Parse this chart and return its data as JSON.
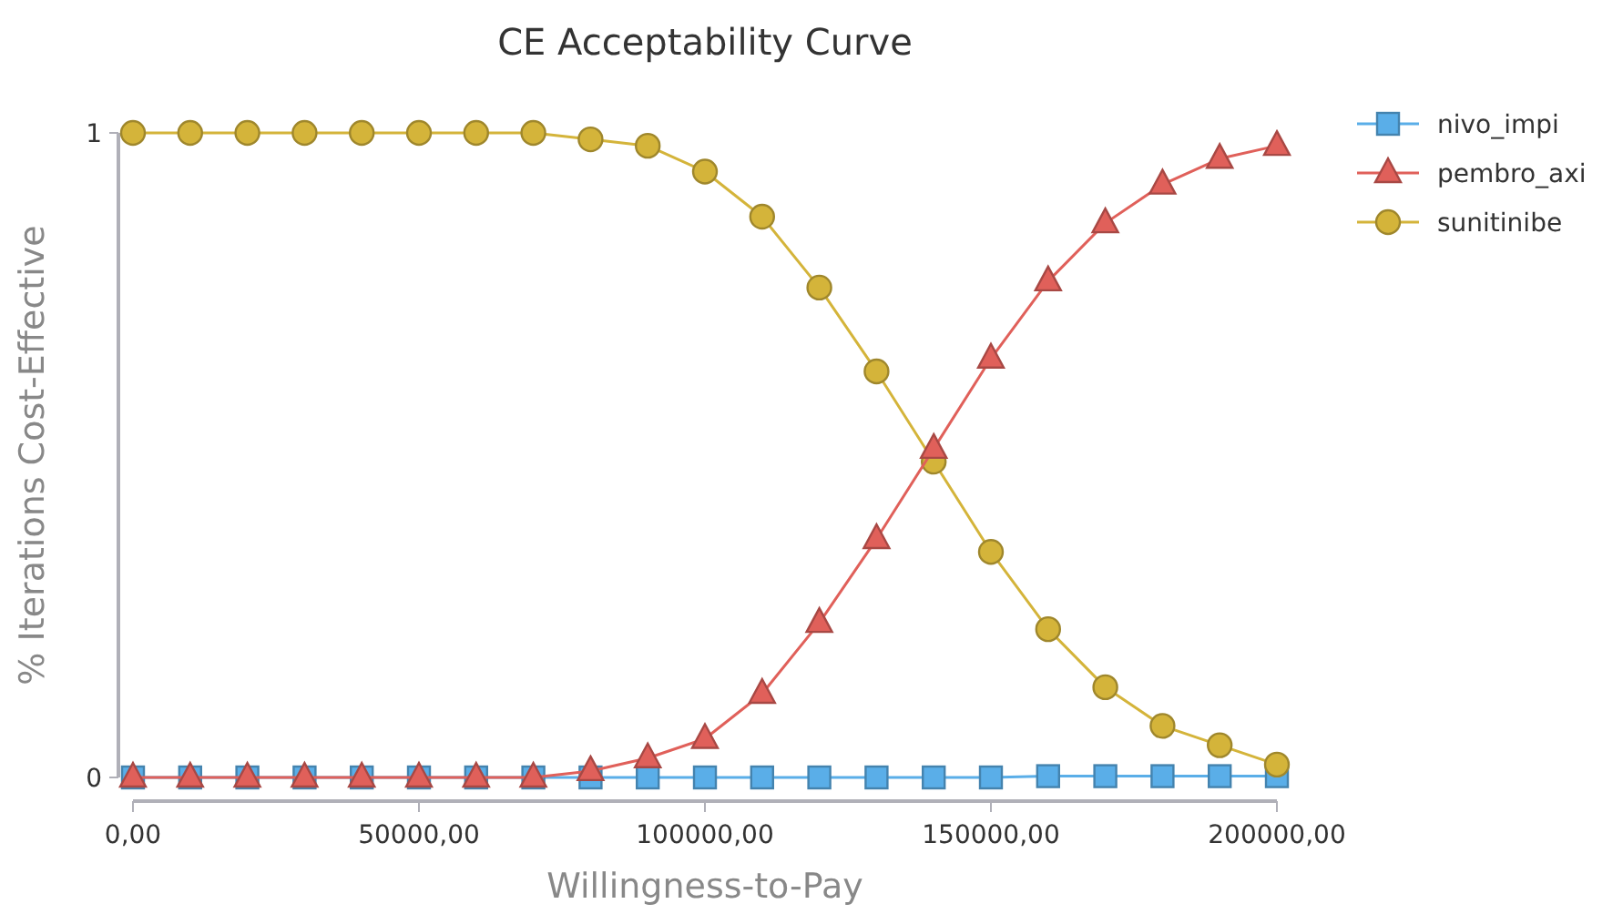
{
  "chart_data": {
    "type": "line",
    "title": "CE Acceptability Curve",
    "xlabel": "Willingness-to-Pay",
    "ylabel": "% Iterations Cost-Effective",
    "x": [
      0,
      10000,
      20000,
      30000,
      40000,
      50000,
      60000,
      70000,
      80000,
      90000,
      100000,
      110000,
      120000,
      130000,
      140000,
      150000,
      160000,
      170000,
      180000,
      190000,
      200000
    ],
    "series": [
      {
        "name": "nivo_impi",
        "color": "#5aaee8",
        "marker": "square",
        "values": [
          0,
          0,
          0,
          0,
          0,
          0,
          0,
          0,
          0,
          0,
          0,
          0,
          0,
          0,
          0,
          0,
          0.002,
          0.002,
          0.002,
          0.002,
          0.002
        ]
      },
      {
        "name": "pembro_axi",
        "color": "#e0605a",
        "marker": "triangle",
        "values": [
          0,
          0,
          0,
          0,
          0,
          0,
          0,
          0,
          0.01,
          0.03,
          0.06,
          0.13,
          0.24,
          0.37,
          0.51,
          0.65,
          0.77,
          0.86,
          0.92,
          0.96,
          0.98
        ]
      },
      {
        "name": "sunitinibe",
        "color": "#d4b43a",
        "marker": "circle",
        "values": [
          1,
          1,
          1,
          1,
          1,
          1,
          1,
          1,
          0.99,
          0.98,
          0.94,
          0.87,
          0.76,
          0.63,
          0.49,
          0.35,
          0.23,
          0.14,
          0.08,
          0.05,
          0.02
        ]
      }
    ],
    "xlim": [
      0,
      200000
    ],
    "xticks": [
      {
        "value": 0,
        "label": "0,00"
      },
      {
        "value": 50000,
        "label": "50000,00"
      },
      {
        "value": 100000,
        "label": "100000,00"
      },
      {
        "value": 150000,
        "label": "150000,00"
      },
      {
        "value": 200000,
        "label": "200000,00"
      }
    ],
    "ylim": [
      0,
      1
    ],
    "yticks": [
      0,
      1
    ],
    "grid": false,
    "legend": "top right",
    "line_style": "solid"
  }
}
